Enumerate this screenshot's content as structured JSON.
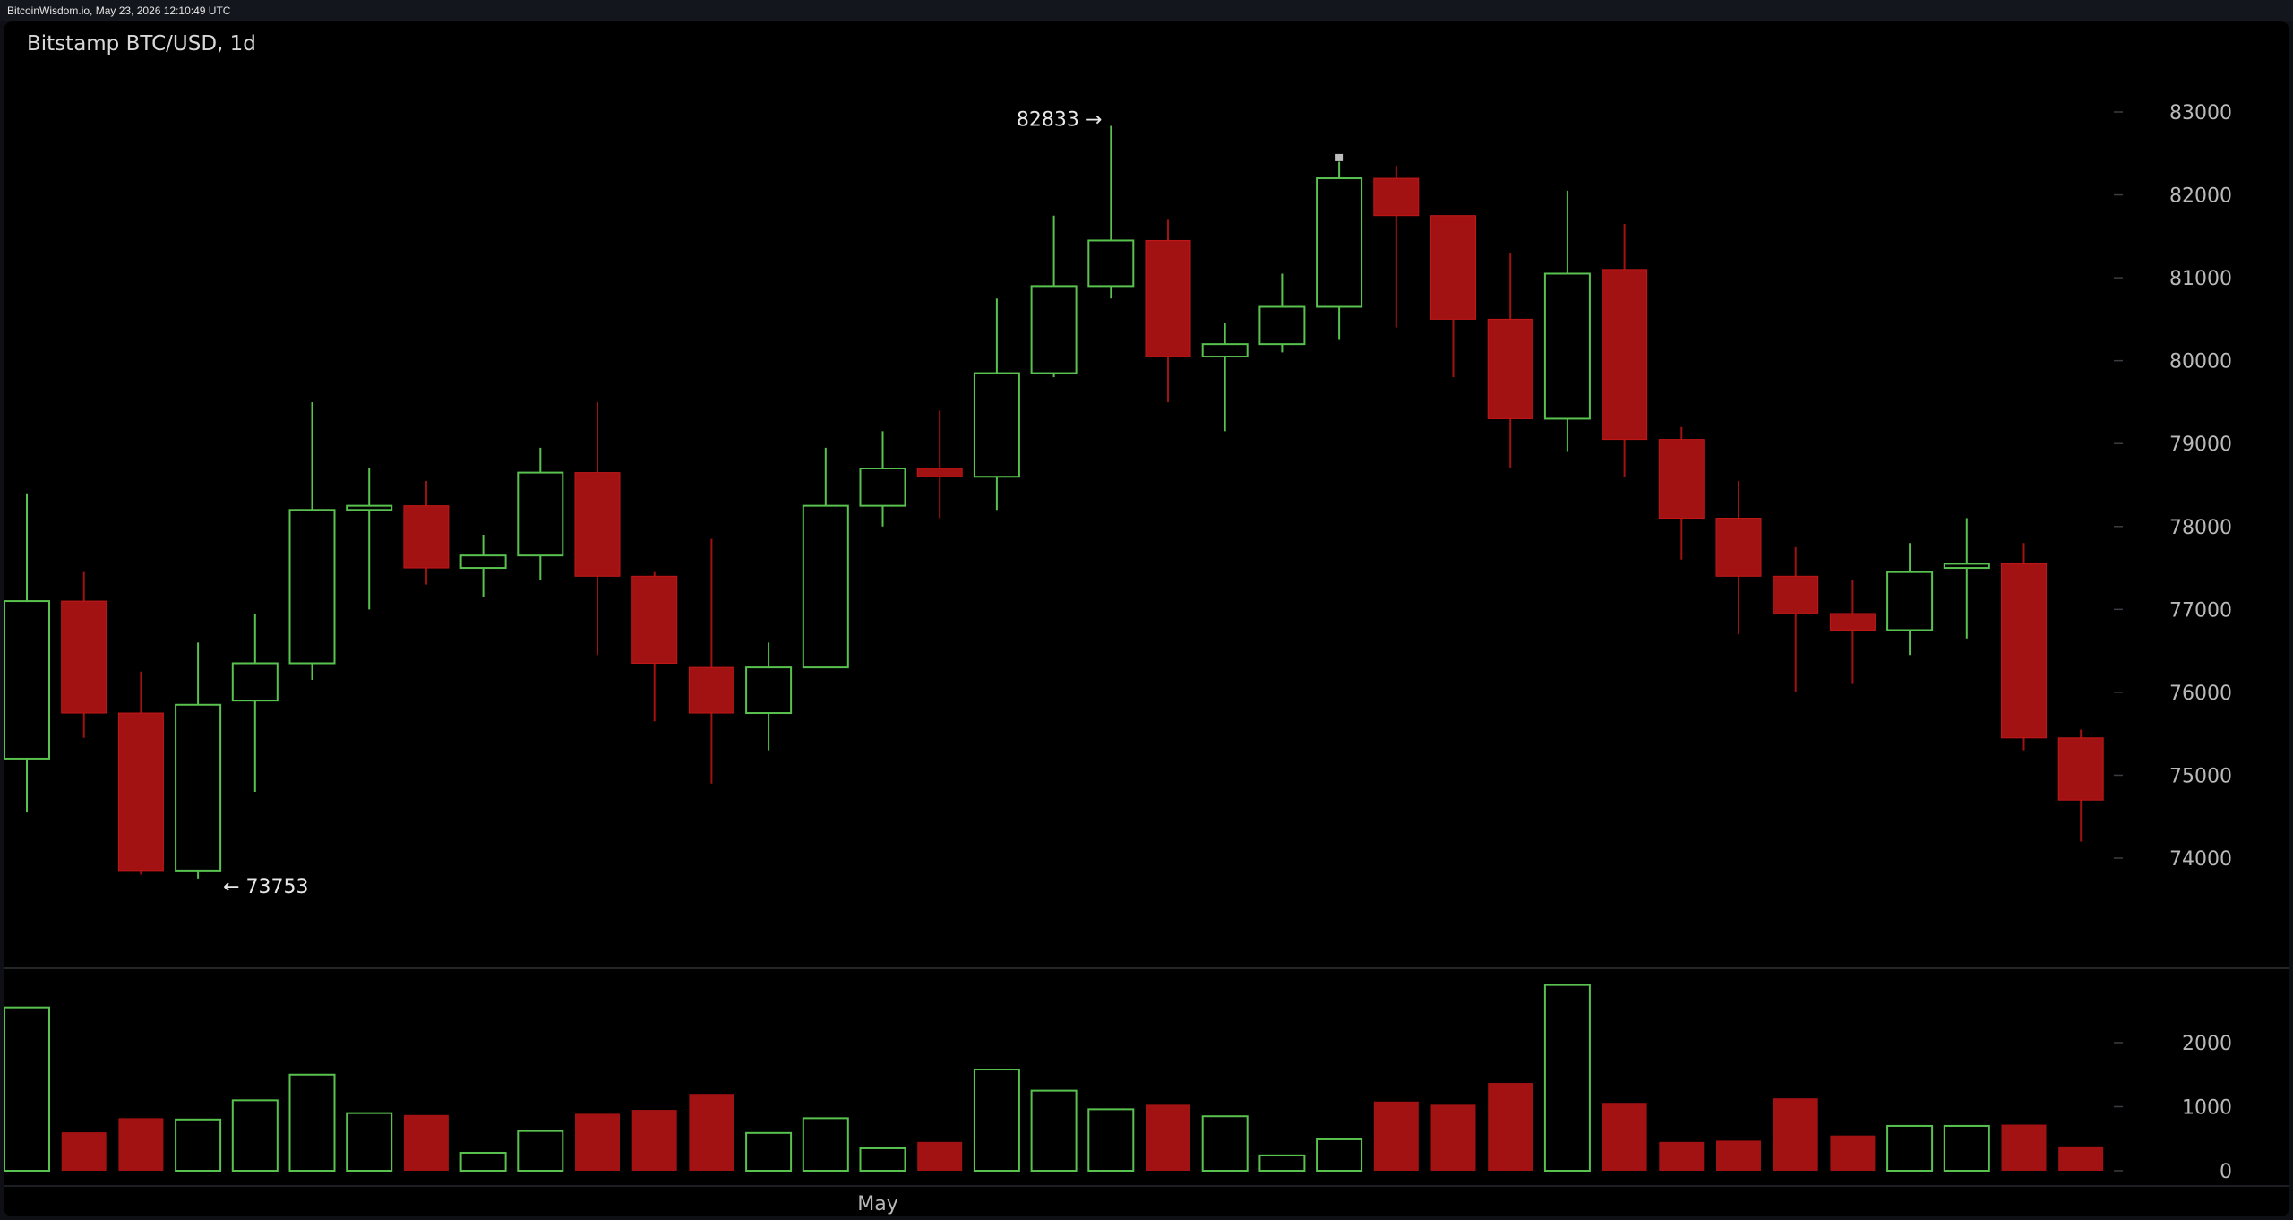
{
  "header": {
    "title": "BitcoinWisdom.io, May 23, 2026 12:10:49 UTC"
  },
  "chart_data": {
    "type": "candlestick",
    "title": "Bitstamp BTC/USD, 1d",
    "xlabel": "",
    "ylabel": "",
    "x_tick_label": "May",
    "y_ticks": [
      74000,
      75000,
      76000,
      77000,
      78000,
      79000,
      80000,
      81000,
      82000,
      83000
    ],
    "ylim": [
      73000,
      83500
    ],
    "volume_ticks": [
      0,
      1000,
      2000
    ],
    "volume_ylim": [
      0,
      3000
    ],
    "annotations": {
      "high_label": "82833 →",
      "low_label": "← 73753",
      "high": 82833,
      "low": 73753
    },
    "colors": {
      "up": "#59c24f",
      "down": "#a31212",
      "background": "#000000",
      "grid": "#3a3d42",
      "tick": "#b9b9b9"
    },
    "candles": [
      {
        "o": 75200,
        "h": 78400,
        "l": 74550,
        "c": 77100,
        "v": 2550
      },
      {
        "o": 77100,
        "h": 77450,
        "l": 75450,
        "c": 75750,
        "v": 600
      },
      {
        "o": 75750,
        "h": 76250,
        "l": 73800,
        "c": 73850,
        "v": 820
      },
      {
        "o": 73850,
        "h": 76600,
        "l": 73753,
        "c": 75850,
        "v": 800
      },
      {
        "o": 75900,
        "h": 76950,
        "l": 74800,
        "c": 76350,
        "v": 1100
      },
      {
        "o": 76350,
        "h": 79500,
        "l": 76150,
        "c": 78200,
        "v": 1500
      },
      {
        "o": 78200,
        "h": 78700,
        "l": 77000,
        "c": 78250,
        "v": 900
      },
      {
        "o": 78250,
        "h": 78550,
        "l": 77300,
        "c": 77500,
        "v": 870
      },
      {
        "o": 77500,
        "h": 77900,
        "l": 77150,
        "c": 77650,
        "v": 280
      },
      {
        "o": 77650,
        "h": 78950,
        "l": 77350,
        "c": 78650,
        "v": 620
      },
      {
        "o": 78650,
        "h": 79500,
        "l": 76450,
        "c": 77400,
        "v": 890
      },
      {
        "o": 77400,
        "h": 77450,
        "l": 75650,
        "c": 76350,
        "v": 950
      },
      {
        "o": 76300,
        "h": 77850,
        "l": 74900,
        "c": 75750,
        "v": 1200
      },
      {
        "o": 75750,
        "h": 76600,
        "l": 75300,
        "c": 76300,
        "v": 590
      },
      {
        "o": 76300,
        "h": 78950,
        "l": 76300,
        "c": 78250,
        "v": 820
      },
      {
        "o": 78250,
        "h": 79150,
        "l": 78000,
        "c": 78700,
        "v": 350
      },
      {
        "o": 78700,
        "h": 79400,
        "l": 78100,
        "c": 78600,
        "v": 450
      },
      {
        "o": 78600,
        "h": 80750,
        "l": 78200,
        "c": 79850,
        "v": 1580
      },
      {
        "o": 79850,
        "h": 81750,
        "l": 79800,
        "c": 80900,
        "v": 1250
      },
      {
        "o": 80900,
        "h": 82833,
        "l": 80750,
        "c": 81450,
        "v": 960
      },
      {
        "o": 81450,
        "h": 81700,
        "l": 79500,
        "c": 80050,
        "v": 1030
      },
      {
        "o": 80050,
        "h": 80450,
        "l": 79150,
        "c": 80200,
        "v": 850
      },
      {
        "o": 80200,
        "h": 81050,
        "l": 80100,
        "c": 80650,
        "v": 240
      },
      {
        "o": 80650,
        "h": 82400,
        "l": 80250,
        "c": 82200,
        "v": 490
      },
      {
        "o": 82200,
        "h": 82350,
        "l": 80400,
        "c": 81750,
        "v": 1080
      },
      {
        "o": 81750,
        "h": 81750,
        "l": 79800,
        "c": 80500,
        "v": 1030
      },
      {
        "o": 80500,
        "h": 81300,
        "l": 78700,
        "c": 79300,
        "v": 1370
      },
      {
        "o": 79300,
        "h": 82050,
        "l": 78900,
        "c": 81050,
        "v": 2900
      },
      {
        "o": 81100,
        "h": 81650,
        "l": 78600,
        "c": 79050,
        "v": 1060
      },
      {
        "o": 79050,
        "h": 79200,
        "l": 77600,
        "c": 78100,
        "v": 450
      },
      {
        "o": 78100,
        "h": 78550,
        "l": 76700,
        "c": 77400,
        "v": 470
      },
      {
        "o": 77400,
        "h": 77750,
        "l": 76000,
        "c": 76950,
        "v": 1130
      },
      {
        "o": 76950,
        "h": 77350,
        "l": 76100,
        "c": 76750,
        "v": 550
      },
      {
        "o": 76750,
        "h": 77800,
        "l": 76450,
        "c": 77450,
        "v": 700
      },
      {
        "o": 77500,
        "h": 78100,
        "l": 76650,
        "c": 77550,
        "v": 700
      },
      {
        "o": 77550,
        "h": 77800,
        "l": 75300,
        "c": 75450,
        "v": 720
      },
      {
        "o": 75450,
        "h": 75550,
        "l": 74200,
        "c": 74700,
        "v": 380
      }
    ]
  }
}
